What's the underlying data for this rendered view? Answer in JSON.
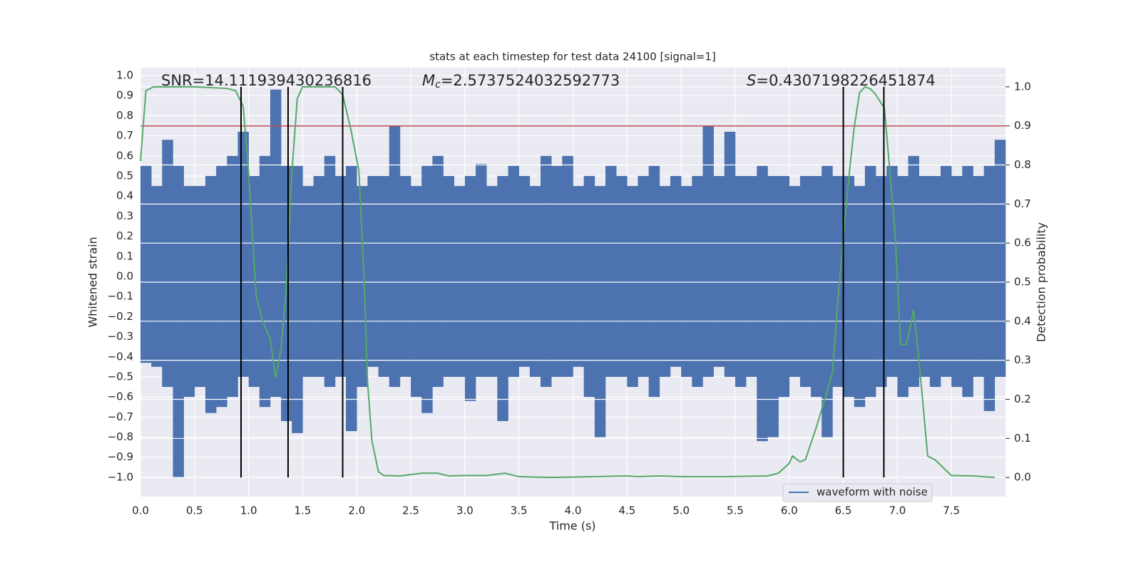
{
  "chart_data": {
    "type": "waveform",
    "title": "stats at each timestep for test data 24100 [signal=1]",
    "xlabel": "Time (s)",
    "ylabel": "Whitened strain",
    "y2label": "Detection probability",
    "xlim": [
      0,
      8.0
    ],
    "ylim": [
      -1.096,
      1.039
    ],
    "y2lim": [
      -0.049,
      1.049
    ],
    "grid": true,
    "xticks": [
      {
        "value": 0,
        "label": "0.0"
      },
      {
        "value": 0.5,
        "label": "0.5"
      },
      {
        "value": 1,
        "label": "1.0"
      },
      {
        "value": 1.5,
        "label": "1.5"
      },
      {
        "value": 2,
        "label": "2.0"
      },
      {
        "value": 2.5,
        "label": "2.5"
      },
      {
        "value": 3,
        "label": "3.0"
      },
      {
        "value": 3.5,
        "label": "3.5"
      },
      {
        "value": 4,
        "label": "4.0"
      },
      {
        "value": 4.5,
        "label": "4.5"
      },
      {
        "value": 5,
        "label": "5.0"
      },
      {
        "value": 5.5,
        "label": "5.5"
      },
      {
        "value": 6,
        "label": "6.0"
      },
      {
        "value": 6.5,
        "label": "6.5"
      },
      {
        "value": 7,
        "label": "7.0"
      },
      {
        "value": 7.5,
        "label": "7.5"
      }
    ],
    "yticks": [
      {
        "value": -1,
        "label": "−1.0"
      },
      {
        "value": -0.9,
        "label": "−0.9"
      },
      {
        "value": -0.8,
        "label": "−0.8"
      },
      {
        "value": -0.7,
        "label": "−0.7"
      },
      {
        "value": -0.6,
        "label": "−0.6"
      },
      {
        "value": -0.5,
        "label": "−0.5"
      },
      {
        "value": -0.4,
        "label": "−0.4"
      },
      {
        "value": -0.3,
        "label": "−0.3"
      },
      {
        "value": -0.2,
        "label": "−0.2"
      },
      {
        "value": -0.1,
        "label": "−0.1"
      },
      {
        "value": 0,
        "label": "0.0"
      },
      {
        "value": 0.1,
        "label": "0.1"
      },
      {
        "value": 0.2,
        "label": "0.2"
      },
      {
        "value": 0.3,
        "label": "0.3"
      },
      {
        "value": 0.4,
        "label": "0.4"
      },
      {
        "value": 0.5,
        "label": "0.5"
      },
      {
        "value": 0.6,
        "label": "0.6"
      },
      {
        "value": 0.7,
        "label": "0.7"
      },
      {
        "value": 0.8,
        "label": "0.8"
      },
      {
        "value": 0.9,
        "label": "0.9"
      },
      {
        "value": 1,
        "label": "1.0"
      }
    ],
    "y2ticks": [
      {
        "value": 0,
        "label": "0.0"
      },
      {
        "value": 0.1,
        "label": "0.1"
      },
      {
        "value": 0.2,
        "label": "0.2"
      },
      {
        "value": 0.3,
        "label": "0.3"
      },
      {
        "value": 0.4,
        "label": "0.4"
      },
      {
        "value": 0.5,
        "label": "0.5"
      },
      {
        "value": 0.6,
        "label": "0.6"
      },
      {
        "value": 0.7,
        "label": "0.7"
      },
      {
        "value": 0.8,
        "label": "0.8"
      },
      {
        "value": 0.9,
        "label": "0.9"
      },
      {
        "value": 1,
        "label": "1.0"
      }
    ],
    "legend": "lower right",
    "series": [
      {
        "name": "waveform with noise",
        "color": "#4c72b0",
        "bins": [
          0,
          0.1,
          0.2,
          0.3,
          0.4,
          0.5,
          0.6,
          0.7,
          0.8,
          0.9,
          1.0,
          1.1,
          1.2,
          1.3,
          1.4,
          1.5,
          1.6,
          1.7,
          1.8,
          1.9,
          2.0,
          2.1,
          2.2,
          2.3,
          2.4,
          2.5,
          2.6,
          2.7,
          2.8,
          2.9,
          3.0,
          3.1,
          3.2,
          3.3,
          3.4,
          3.5,
          3.6,
          3.7,
          3.8,
          3.9,
          4.0,
          4.1,
          4.2,
          4.3,
          4.4,
          4.5,
          4.6,
          4.7,
          4.8,
          4.9,
          5.0,
          5.1,
          5.2,
          5.3,
          5.4,
          5.5,
          5.6,
          5.7,
          5.8,
          5.9,
          6.0,
          6.1,
          6.2,
          6.3,
          6.4,
          6.5,
          6.6,
          6.7,
          6.8,
          6.9,
          7.0,
          7.1,
          7.2,
          7.3,
          7.4,
          7.5,
          7.6,
          7.7,
          7.8,
          7.9,
          8.0
        ],
        "upper": [
          0.55,
          0.45,
          0.68,
          0.55,
          0.45,
          0.45,
          0.5,
          0.55,
          0.6,
          0.72,
          0.5,
          0.6,
          0.93,
          0.55,
          0.55,
          0.45,
          0.5,
          0.6,
          0.5,
          0.55,
          0.45,
          0.5,
          0.5,
          0.75,
          0.5,
          0.45,
          0.55,
          0.6,
          0.5,
          0.45,
          0.5,
          0.56,
          0.45,
          0.5,
          0.55,
          0.5,
          0.45,
          0.6,
          0.55,
          0.6,
          0.45,
          0.5,
          0.45,
          0.55,
          0.5,
          0.45,
          0.5,
          0.55,
          0.45,
          0.5,
          0.45,
          0.5,
          0.75,
          0.5,
          0.72,
          0.5,
          0.5,
          0.55,
          0.5,
          0.5,
          0.45,
          0.5,
          0.5,
          0.55,
          0.5,
          0.5,
          0.45,
          0.55,
          0.5,
          0.55,
          0.5,
          0.6,
          0.5,
          0.5,
          0.55,
          0.5,
          0.55,
          0.5,
          0.55,
          0.68
        ],
        "lower": [
          -0.43,
          -0.45,
          -0.55,
          -1.0,
          -0.6,
          -0.55,
          -0.68,
          -0.65,
          -0.6,
          -0.5,
          -0.55,
          -0.65,
          -0.6,
          -0.72,
          -0.78,
          -0.5,
          -0.5,
          -0.55,
          -0.5,
          -0.77,
          -0.55,
          -0.45,
          -0.5,
          -0.55,
          -0.5,
          -0.6,
          -0.68,
          -0.55,
          -0.5,
          -0.5,
          -0.62,
          -0.5,
          -0.5,
          -0.72,
          -0.5,
          -0.45,
          -0.5,
          -0.55,
          -0.5,
          -0.5,
          -0.45,
          -0.6,
          -0.8,
          -0.5,
          -0.5,
          -0.55,
          -0.5,
          -0.6,
          -0.5,
          -0.45,
          -0.5,
          -0.55,
          -0.5,
          -0.45,
          -0.5,
          -0.55,
          -0.5,
          -0.82,
          -0.8,
          -0.6,
          -0.5,
          -0.55,
          -0.6,
          -0.8,
          -0.55,
          -0.6,
          -0.65,
          -0.6,
          -0.55,
          -0.5,
          -0.6,
          -0.55,
          -0.5,
          -0.55,
          -0.5,
          -0.55,
          -0.6,
          -0.5,
          -0.67,
          -0.5
        ]
      },
      {
        "color": "#55a868",
        "axis": "y2",
        "x": [
          0,
          0.05,
          0.12,
          0.5,
          0.8,
          0.88,
          0.95,
          1.0,
          1.07,
          1.13,
          1.2,
          1.25,
          1.3,
          1.35,
          1.4,
          1.45,
          1.5,
          1.6,
          1.8,
          1.87,
          1.95,
          2.02,
          2.07,
          2.1,
          2.14,
          2.2,
          2.25,
          2.4,
          2.6,
          2.75,
          2.85,
          3.0,
          3.2,
          3.37,
          3.5,
          3.8,
          4.2,
          4.5,
          4.6,
          4.8,
          5.0,
          5.4,
          5.8,
          5.9,
          6.0,
          6.03,
          6.1,
          6.15,
          6.25,
          6.35,
          6.4,
          6.45,
          6.5,
          6.55,
          6.6,
          6.65,
          6.7,
          6.75,
          6.8,
          6.88,
          6.93,
          6.98,
          7.03,
          7.08,
          7.12,
          7.15,
          7.2,
          7.28,
          7.35,
          7.45,
          7.5,
          7.7,
          7.9
        ],
        "values": [
          0.81,
          0.99,
          1.0,
          1.0,
          0.996,
          0.99,
          0.95,
          0.78,
          0.465,
          0.4,
          0.355,
          0.255,
          0.33,
          0.49,
          0.78,
          0.97,
          1.0,
          1.0,
          1.0,
          0.98,
          0.885,
          0.785,
          0.49,
          0.245,
          0.095,
          0.015,
          0.005,
          0.004,
          0.011,
          0.011,
          0.004,
          0.005,
          0.005,
          0.011,
          0.002,
          0.0,
          0.002,
          0.004,
          0.002,
          0.004,
          0.002,
          0.002,
          0.004,
          0.011,
          0.036,
          0.055,
          0.04,
          0.046,
          0.128,
          0.22,
          0.27,
          0.456,
          0.61,
          0.766,
          0.894,
          0.985,
          1.0,
          0.995,
          0.98,
          0.945,
          0.785,
          0.62,
          0.34,
          0.34,
          0.385,
          0.43,
          0.3,
          0.055,
          0.045,
          0.018,
          0.005,
          0.004,
          0.0
        ]
      }
    ],
    "hline": {
      "value": 0.9,
      "axis": "y2",
      "color": "#c44e52"
    },
    "vlines": {
      "x": [
        0.93,
        1.365,
        1.87,
        6.5,
        6.875
      ],
      "ymin": 0,
      "ymax": 1,
      "axis": "y2",
      "color": "#000000"
    },
    "annotations": [
      {
        "text": "SNR=14.111939430236816"
      },
      {
        "symbol": "M",
        "subscript": "c",
        "text": "=2.5737524032592773"
      },
      {
        "symbol": "S",
        "text": "=0.4307198226451874"
      }
    ]
  }
}
